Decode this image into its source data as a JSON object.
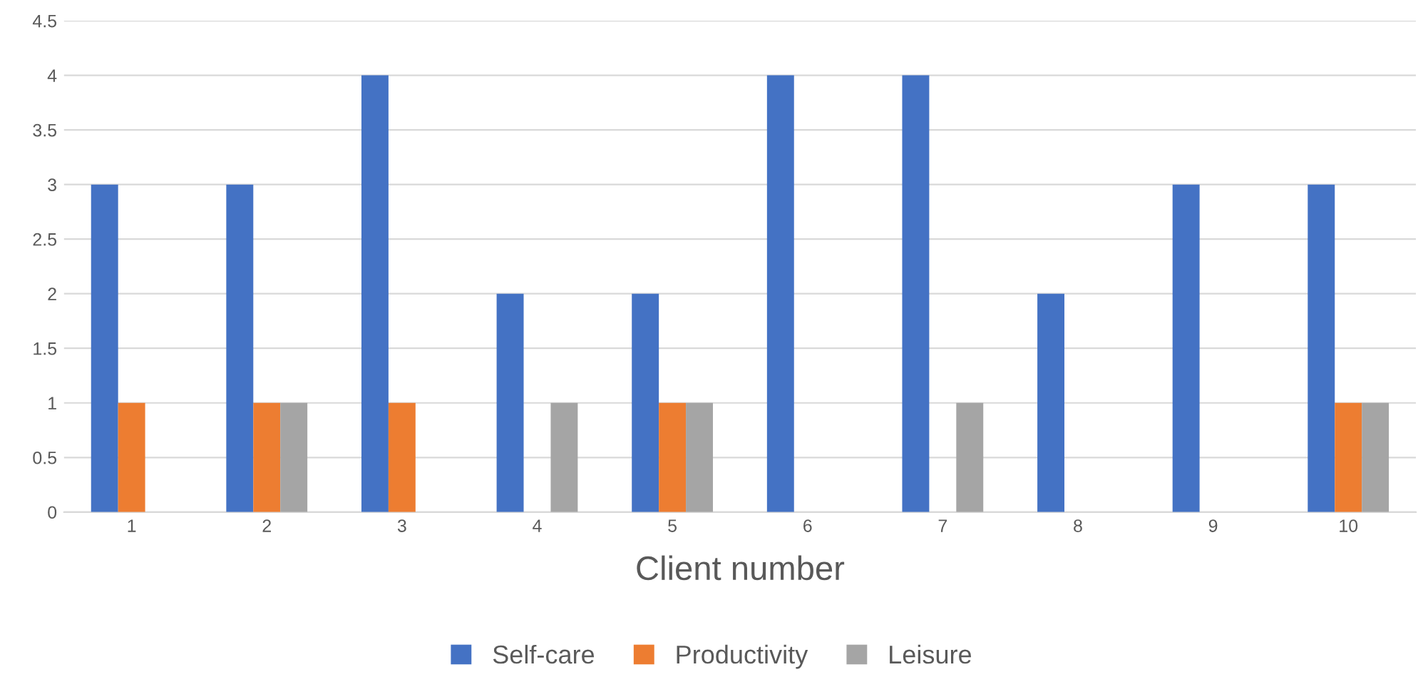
{
  "chart_data": {
    "type": "bar",
    "xlabel": "Client number",
    "categories": [
      "1",
      "2",
      "3",
      "4",
      "5",
      "6",
      "7",
      "8",
      "9",
      "10"
    ],
    "series": [
      {
        "name": "Self-care",
        "color": "#4472c4",
        "values": [
          3,
          3,
          4,
          2,
          2,
          4,
          4,
          2,
          3,
          3
        ]
      },
      {
        "name": "Productivity",
        "color": "#ed7d31",
        "values": [
          1,
          1,
          1,
          0,
          1,
          0,
          0,
          0,
          0,
          1
        ]
      },
      {
        "name": "Leisure",
        "color": "#a5a5a5",
        "values": [
          0,
          1,
          0,
          1,
          1,
          0,
          1,
          0,
          0,
          1
        ]
      }
    ],
    "ylim": [
      0,
      4.5
    ],
    "yticks": [
      0,
      0.5,
      1,
      1.5,
      2,
      2.5,
      3,
      3.5,
      4,
      4.5
    ],
    "grid": "y",
    "legend": "bottom"
  }
}
